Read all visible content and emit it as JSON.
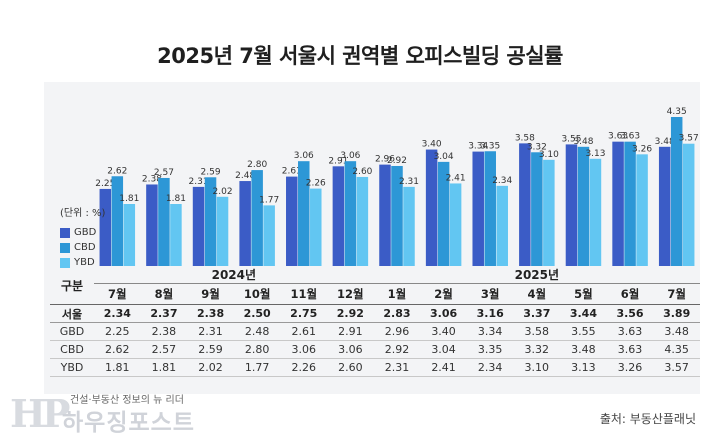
{
  "title": "2025년 7월 서울시 권역별 오피스빌딩 공실률",
  "legend": {
    "unit_label": "(단위 : %)",
    "items": [
      {
        "name": "GBD",
        "color": "#3b5cc6"
      },
      {
        "name": "CBD",
        "color": "#2d97d6"
      },
      {
        "name": "YBD",
        "color": "#62c6f2"
      }
    ]
  },
  "table": {
    "corner_label": "구분",
    "year_2024": "2024년",
    "year_2025": "2025년",
    "months": [
      "7월",
      "8월",
      "9월",
      "10월",
      "11월",
      "12월",
      "1월",
      "2월",
      "3월",
      "4월",
      "5월",
      "6월",
      "7월"
    ],
    "rows": [
      {
        "label": "서울",
        "values": [
          "2.34",
          "2.37",
          "2.38",
          "2.50",
          "2.75",
          "2.92",
          "2.83",
          "3.06",
          "3.16",
          "3.37",
          "3.44",
          "3.56",
          "3.89"
        ]
      },
      {
        "label": "GBD",
        "values": [
          "2.25",
          "2.38",
          "2.31",
          "2.48",
          "2.61",
          "2.91",
          "2.96",
          "3.40",
          "3.34",
          "3.58",
          "3.55",
          "3.63",
          "3.48"
        ]
      },
      {
        "label": "CBD",
        "values": [
          "2.62",
          "2.57",
          "2.59",
          "2.80",
          "3.06",
          "3.06",
          "2.92",
          "3.04",
          "3.35",
          "3.32",
          "3.48",
          "3.63",
          "4.35"
        ]
      },
      {
        "label": "YBD",
        "values": [
          "1.81",
          "1.81",
          "2.02",
          "1.77",
          "2.26",
          "2.60",
          "2.31",
          "2.41",
          "2.34",
          "3.10",
          "3.13",
          "3.26",
          "3.57"
        ]
      }
    ]
  },
  "chart_data": {
    "type": "bar",
    "title": "2025년 7월 서울시 권역별 오피스빌딩 공실률",
    "unit": "(단위 : %)",
    "categories": [
      "7월",
      "8월",
      "9월",
      "10월",
      "11월",
      "12월",
      "1월",
      "2월",
      "3월",
      "4월",
      "5월",
      "6월",
      "7월"
    ],
    "category_years": [
      "2024년",
      "2024년",
      "2024년",
      "2024년",
      "2024년",
      "2024년",
      "2025년",
      "2025년",
      "2025년",
      "2025년",
      "2025년",
      "2025년",
      "2025년"
    ],
    "series": [
      {
        "name": "GBD",
        "values": [
          2.25,
          2.38,
          2.31,
          2.48,
          2.61,
          2.91,
          2.96,
          3.4,
          3.34,
          3.58,
          3.55,
          3.63,
          3.48
        ]
      },
      {
        "name": "CBD",
        "values": [
          2.62,
          2.57,
          2.59,
          2.8,
          3.06,
          3.06,
          2.92,
          3.04,
          3.35,
          3.32,
          3.48,
          3.63,
          4.35
        ]
      },
      {
        "name": "YBD",
        "values": [
          1.81,
          1.81,
          2.02,
          1.77,
          2.26,
          2.6,
          2.31,
          2.41,
          2.34,
          3.1,
          3.13,
          3.26,
          3.57
        ]
      }
    ],
    "value_labels": {
      "GBD": [
        "2.25",
        "2.38",
        "2.31",
        "2.48",
        "2.61",
        "2.91",
        "2.96",
        "3.40",
        "3.34",
        "3.58",
        "3.55",
        "3.63",
        "3.48"
      ],
      "CBD": [
        "2.62",
        "2.57",
        "2.59",
        "2.80",
        "3.06",
        "3.06",
        "2.92",
        "3.04",
        "3.35",
        "3.32",
        "3.48",
        "3.63",
        "4.35"
      ],
      "YBD": [
        "1.81",
        "1.81",
        "2.02",
        "1.77",
        "2.26",
        "2.60",
        "2.31",
        "2.41",
        "2.34",
        "3.10",
        "3.13",
        "3.26",
        "3.57"
      ]
    },
    "legend_position": "left",
    "grid": false
  },
  "watermark": {
    "logo": "HP",
    "tagline": "건설·부동산 정보의 뉴 리더",
    "name": "하우징포스트"
  },
  "source": "출처: 부동산플래닛"
}
